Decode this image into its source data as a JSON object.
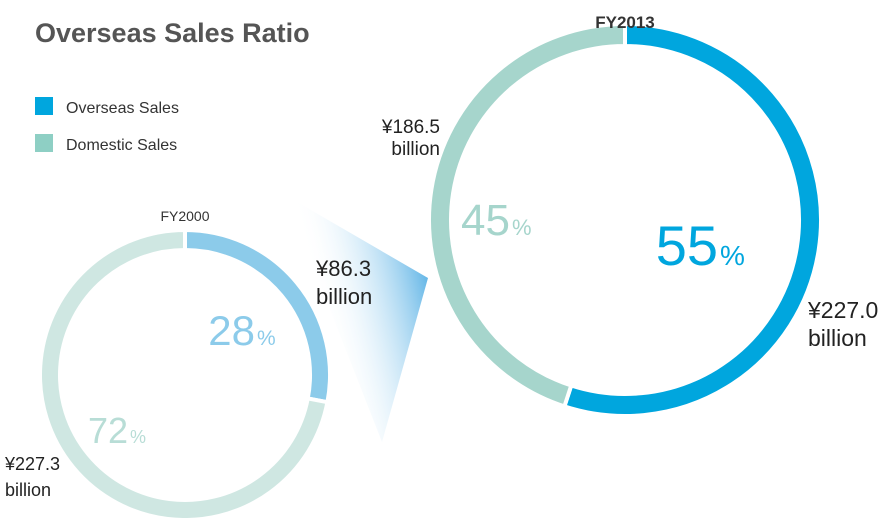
{
  "title": "Overseas Sales Ratio",
  "legend": {
    "items": [
      {
        "name": "Overseas Sales",
        "color": "#00a6de"
      },
      {
        "name": "Domestic Sales",
        "color": "#8ecfc4"
      }
    ]
  },
  "chart_data": [
    {
      "type": "pie",
      "title": "FY2000",
      "categories": [
        "Overseas Sales",
        "Domestic Sales"
      ],
      "values": [
        28,
        72
      ],
      "unit": "%",
      "colors": [
        "#8ccbea",
        "#cfe7e2"
      ],
      "label_colors": [
        "#8ccbea",
        "#b8ddd6"
      ],
      "amount_labels": [
        [
          "¥86.3",
          "billion"
        ],
        [
          "¥227.3",
          "billion"
        ]
      ]
    },
    {
      "type": "pie",
      "title": "FY2013",
      "categories": [
        "Overseas Sales",
        "Domestic Sales"
      ],
      "values": [
        55,
        45
      ],
      "unit": "%",
      "colors": [
        "#00a6de",
        "#a6d5cc"
      ],
      "label_colors": [
        "#00a6de",
        "#a6d5cc"
      ],
      "amount_labels": [
        [
          "¥227.0",
          "billion"
        ],
        [
          "¥186.5",
          "billion"
        ]
      ]
    }
  ]
}
